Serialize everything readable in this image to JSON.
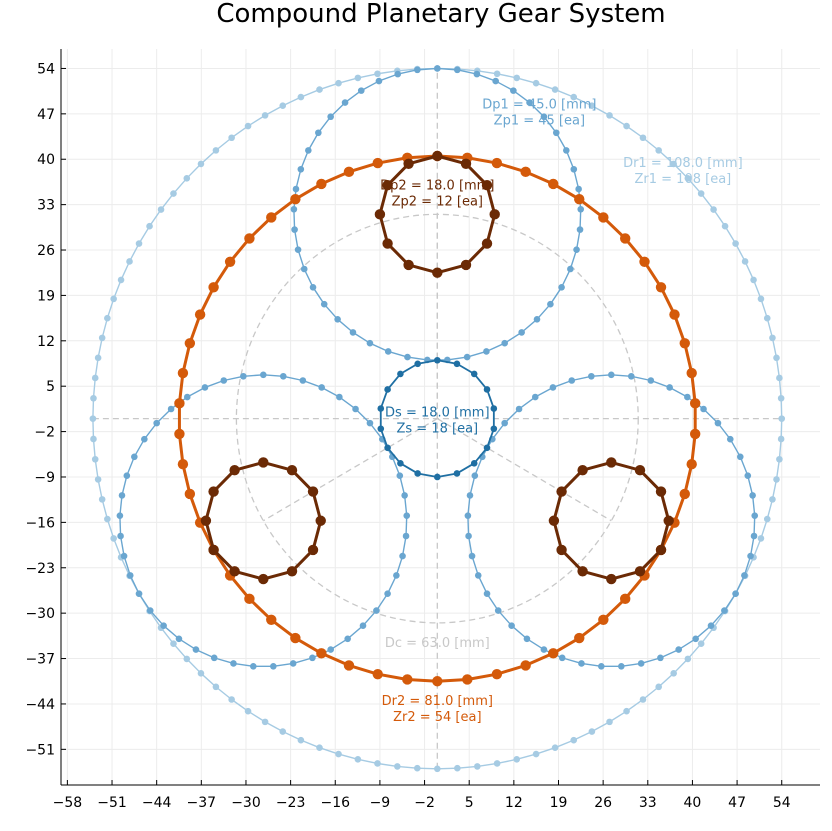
{
  "title": "Compound Planetary Gear System",
  "colors": {
    "ring1": "#a6cbe3",
    "planet1": "#6aa6d0",
    "sun": "#1f6fa3",
    "ring2": "#d45a0a",
    "planet2": "#6b2a05",
    "carrier": "#c8c8c8",
    "grid": "#ececec"
  },
  "chart_data": {
    "type": "diagram",
    "xlim": [
      -59,
      60
    ],
    "ylim": [
      -56.5,
      57
    ],
    "x_ticks": [
      -58,
      -51,
      -44,
      -37,
      -30,
      -23,
      -16,
      -9,
      -2,
      5,
      12,
      19,
      26,
      33,
      40,
      47,
      54
    ],
    "y_ticks": [
      54,
      47,
      40,
      33,
      26,
      19,
      12,
      5,
      -2,
      -9,
      -16,
      -23,
      -30,
      -37,
      -44,
      -51
    ],
    "x_tick_labels": [
      "−58",
      "−51",
      "−44",
      "−37",
      "−30",
      "−23",
      "−16",
      "−9",
      "−2",
      "5",
      "12",
      "19",
      "26",
      "33",
      "40",
      "47",
      "54"
    ],
    "y_tick_labels": [
      "54",
      "47",
      "40",
      "33",
      "26",
      "19",
      "12",
      "5",
      "−2",
      "−9",
      "−16",
      "−23",
      "−30",
      "−37",
      "−44",
      "−51"
    ],
    "grid": true,
    "gears": [
      {
        "id": "ring1",
        "diameter": 108,
        "teeth": 108,
        "centers": [
          [
            0,
            0
          ]
        ]
      },
      {
        "id": "planet1",
        "diameter": 45,
        "teeth": 45,
        "centers": [
          [
            0,
            31.5
          ],
          [
            -27.28,
            -15.75
          ],
          [
            27.28,
            -15.75
          ]
        ]
      },
      {
        "id": "sun",
        "diameter": 18,
        "teeth": 18,
        "centers": [
          [
            0,
            0
          ]
        ]
      },
      {
        "id": "ring2",
        "diameter": 81,
        "teeth": 54,
        "centers": [
          [
            0,
            0
          ]
        ]
      },
      {
        "id": "planet2",
        "diameter": 18,
        "teeth": 12,
        "centers": [
          [
            0,
            31.5
          ],
          [
            -27.28,
            -15.75
          ],
          [
            27.28,
            -15.75
          ]
        ]
      }
    ],
    "carrier": {
      "diameter": 63,
      "center": [
        0,
        0
      ]
    },
    "annotations": [
      {
        "line1": "Dp1 = 45.0 [mm]",
        "line2": "Zp1 = 45 [ea]",
        "x": 16,
        "y": 47.5,
        "color_key": "planet1"
      },
      {
        "line1": "Dr1 = 108.0 [mm]",
        "line2": "Zr1 = 108 [ea]",
        "x": 38.5,
        "y": 38.5,
        "color_key": "ring1"
      },
      {
        "line1": "Dp2 = 18.0 [mm]",
        "line2": "Zp2 = 12 [ea]",
        "x": 0,
        "y": 35,
        "color_key": "planet2"
      },
      {
        "line1": "Ds = 18.0 [mm]",
        "line2": "Zs = 18 [ea]",
        "x": 0,
        "y": 0,
        "color_key": "sun"
      },
      {
        "line1": "Dc = 63.0 [mm]",
        "line2": "",
        "x": 0,
        "y": -35.5,
        "color_key": "carrier"
      },
      {
        "line1": "Dr2 = 81.0 [mm]",
        "line2": "Zr2 = 54 [ea]",
        "x": 0,
        "y": -44.5,
        "color_key": "ring2"
      }
    ]
  }
}
